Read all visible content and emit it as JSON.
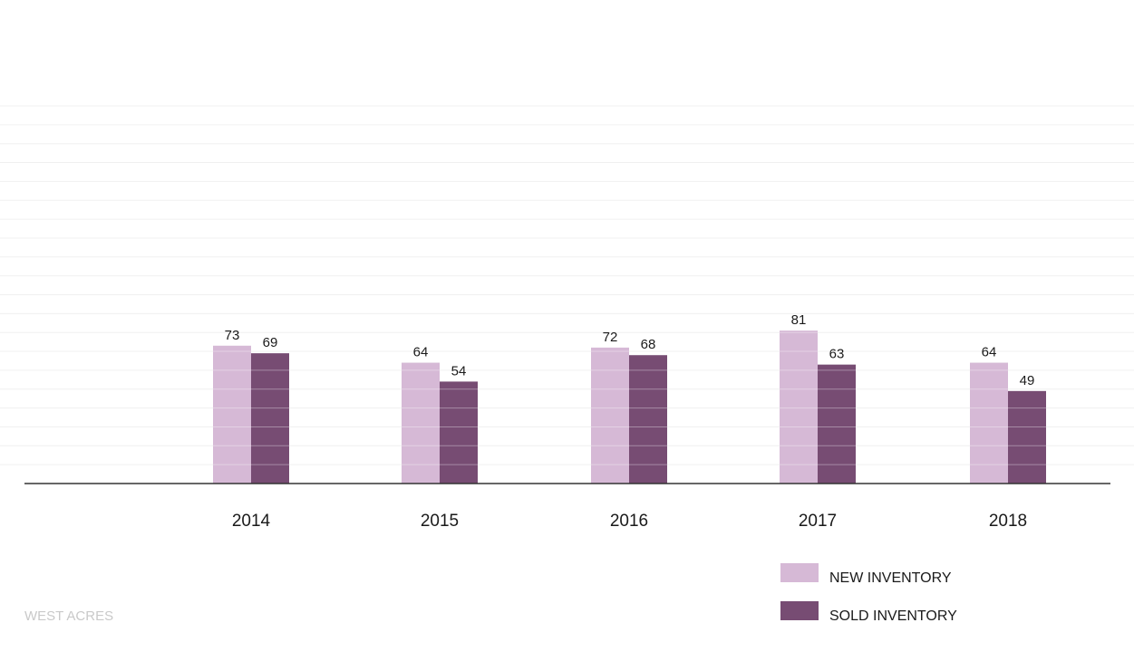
{
  "chart_data": {
    "type": "bar",
    "categories": [
      "2014",
      "2015",
      "2016",
      "2017",
      "2018"
    ],
    "series": [
      {
        "name": "NEW INVENTORY",
        "values": [
          73,
          64,
          72,
          81,
          64
        ],
        "color": "#d6b9d6"
      },
      {
        "name": "SOLD INVENTORY",
        "values": [
          69,
          54,
          68,
          63,
          49
        ],
        "color": "#774c73"
      }
    ],
    "ylim": [
      0,
      200
    ],
    "grid": true,
    "legend_position": "bottom-right",
    "data_labels": true
  },
  "footer": {
    "label": "WEST ACRES"
  },
  "colors": {
    "axis": "#333333",
    "grid": "#f0f0f0",
    "bar_stripe": "#ffffff"
  }
}
